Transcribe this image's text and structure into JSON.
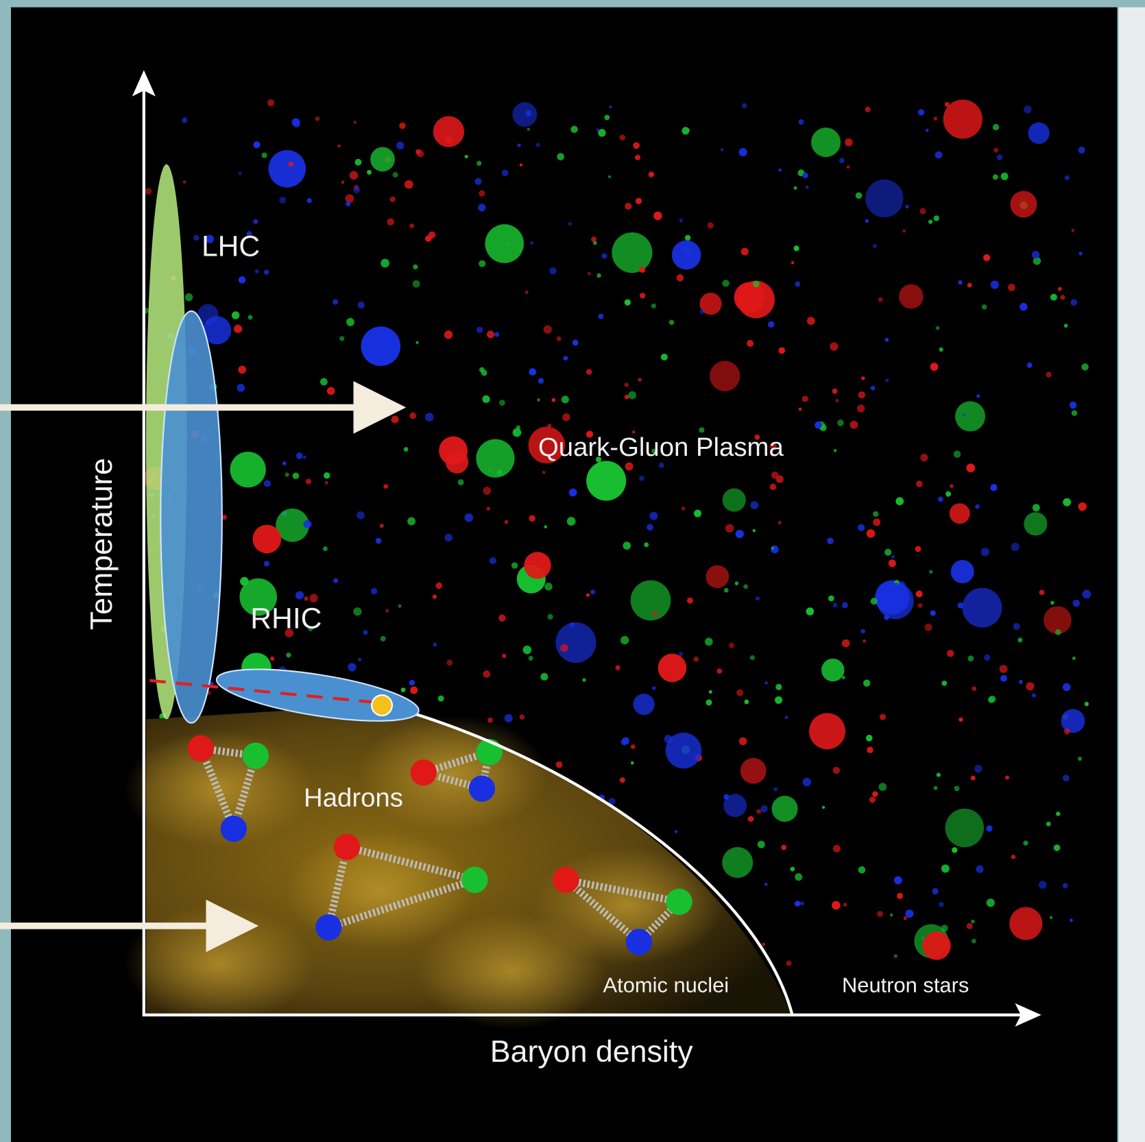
{
  "axes": {
    "y_label": "Temperature",
    "x_label": "Baryon density"
  },
  "regions": {
    "lhc": "LHC",
    "rhic": "RHIC",
    "qgp": "Quark-Gluon Plasma",
    "hadrons": "Hadrons",
    "nuclei": "Atomic nuclei",
    "neutron_stars": "Neutron stars"
  }
}
